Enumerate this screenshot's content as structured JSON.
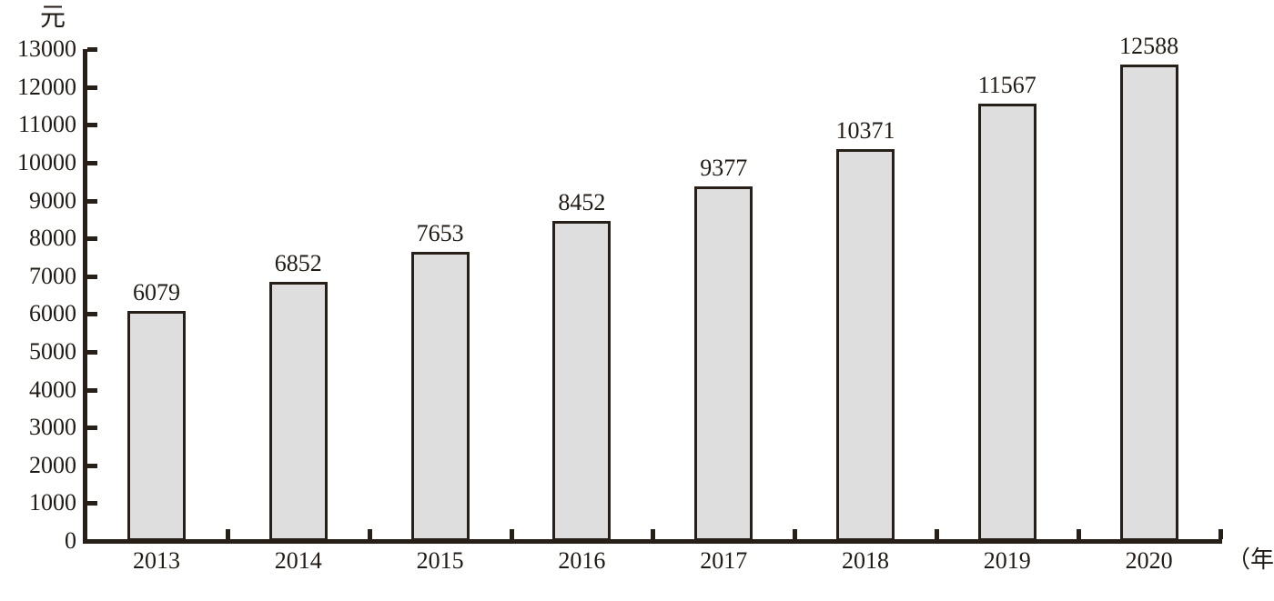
{
  "chart_data": {
    "type": "bar",
    "title": "",
    "unit_y": "元",
    "unit_x": "（年）",
    "xlabel": "年",
    "ylabel": "元",
    "categories": [
      "2013",
      "2014",
      "2015",
      "2016",
      "2017",
      "2018",
      "2019",
      "2020"
    ],
    "values": [
      6079,
      6852,
      7653,
      8452,
      9377,
      10371,
      11567,
      12588
    ],
    "yticks": [
      0,
      1000,
      2000,
      3000,
      4000,
      5000,
      6000,
      7000,
      8000,
      9000,
      10000,
      11000,
      12000,
      13000
    ],
    "ylim": [
      0,
      13000
    ],
    "grid": false,
    "legend": "none",
    "bar_fill": "#dedede",
    "bar_border": "#262019",
    "axis_color": "#262019",
    "text_color": "#201a15"
  }
}
